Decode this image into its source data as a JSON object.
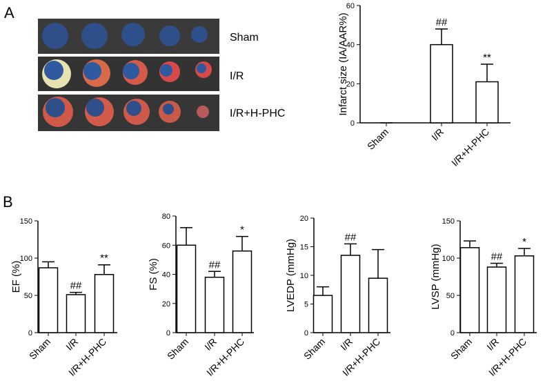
{
  "panel_labels": [
    "A",
    "B"
  ],
  "panel_a_image": {
    "rows": [
      "Sham",
      "I/R",
      "I/R+H-PHC"
    ]
  },
  "chart_data": [
    {
      "type": "bar",
      "ylabel": "Infarct size (IA/AAR%)",
      "categories": [
        "Sham",
        "I/R",
        "I/R+H-PHC"
      ],
      "values": [
        0,
        40,
        21
      ],
      "errors": [
        0,
        8,
        9
      ],
      "annotations": [
        null,
        "##",
        "**"
      ],
      "color": "#ffffff",
      "ylim": [
        0,
        60
      ],
      "yticks": [
        0,
        20,
        40,
        60
      ]
    },
    {
      "type": "bar",
      "ylabel": "EF (%)",
      "categories": [
        "Sham",
        "I/R",
        "I/R+H-PHC"
      ],
      "values": [
        87,
        51,
        78
      ],
      "errors": [
        8,
        3,
        13
      ],
      "annotations": [
        null,
        "##",
        "**"
      ],
      "color": "#ffffff",
      "ylim": [
        0,
        150
      ],
      "yticks": [
        0,
        50,
        100,
        150
      ]
    },
    {
      "type": "bar",
      "ylabel": "FS (%)",
      "categories": [
        "Sham",
        "I/R",
        "I/R+H-PHC"
      ],
      "values": [
        60,
        38,
        56
      ],
      "errors": [
        12,
        4,
        10
      ],
      "annotations": [
        null,
        "##",
        "*"
      ],
      "color": "#ffffff",
      "ylim": [
        0,
        80
      ],
      "yticks": [
        0,
        20,
        40,
        60,
        80
      ]
    },
    {
      "type": "bar",
      "ylabel": "LVEDP (mmHg)",
      "categories": [
        "Sham",
        "I/R",
        "I/R+H-PHC"
      ],
      "values": [
        6.5,
        13.5,
        9.5
      ],
      "errors": [
        1.5,
        2,
        5
      ],
      "annotations": [
        null,
        "##",
        null
      ],
      "color": "#ffffff",
      "ylim": [
        0,
        20
      ],
      "yticks": [
        0,
        5,
        10,
        15,
        20
      ]
    },
    {
      "type": "bar",
      "ylabel": "LVSP (mmHg)",
      "categories": [
        "Sham",
        "I/R",
        "I/R+H-PHC"
      ],
      "values": [
        114,
        88,
        103
      ],
      "errors": [
        9,
        5,
        10
      ],
      "annotations": [
        null,
        "##",
        "*"
      ],
      "color": "#ffffff",
      "ylim": [
        0,
        150
      ],
      "yticks": [
        0,
        50,
        100,
        150
      ]
    }
  ]
}
